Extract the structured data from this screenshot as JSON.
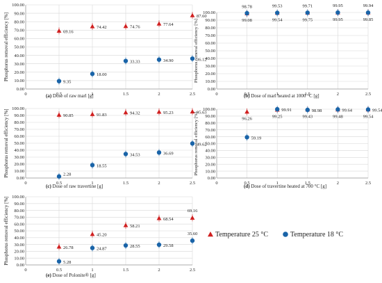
{
  "colors": {
    "t25": "#d02020",
    "t18": "#1a64a8",
    "grid": "#d8d8d8",
    "axis": "#9a9a9a"
  },
  "legend": {
    "t25": "Temperature 25 °C",
    "t18": "Temperature 18 °C"
  },
  "chart_data": [
    {
      "id": "a",
      "type": "scatter",
      "caption_letter": "(a)",
      "caption": "Dose of raw marl [g]",
      "ylabel": "Phosphorus removal efficiency  [%]",
      "xlim": [
        0,
        2.5
      ],
      "ylim": [
        0,
        100
      ],
      "ystep": 10,
      "xticks": [
        "0",
        "0.5",
        "1",
        "1.5",
        "2",
        "2.5"
      ],
      "yticks": [
        "0.00",
        "10.00",
        "20.00",
        "30.00",
        "40.00",
        "50.00",
        "60.00",
        "70.00",
        "80.00",
        "90.00",
        "100.00"
      ],
      "x": [
        0.5,
        1,
        1.5,
        2,
        2.5
      ],
      "series": [
        {
          "name": "Temperature 25 °C",
          "values": [
            69.16,
            74.42,
            74.76,
            77.64,
            87.6
          ],
          "labels": [
            "69.16",
            "74.42",
            "74.76",
            "77.64",
            "87.60"
          ]
        },
        {
          "name": "Temperature 18 °C",
          "values": [
            9.35,
            18.0,
            33.33,
            34.9,
            36.12
          ],
          "labels": [
            "9.35",
            "18.00",
            "33.33",
            "34.90",
            "36.12"
          ]
        }
      ]
    },
    {
      "id": "b",
      "type": "scatter",
      "caption_letter": "(b)",
      "caption": "Dose of marl heated at 1000 °C [g]",
      "ylabel": "Phosphorus removal efficiency  [%]",
      "xlim": [
        0,
        2.5
      ],
      "ylim": [
        0,
        100
      ],
      "ystep": 10,
      "xticks": [
        "0",
        "0.5",
        "1",
        "1.5",
        "2",
        "2.5"
      ],
      "yticks": [
        "0.00",
        "10.00",
        "20.00",
        "30.00",
        "40.00",
        "50.00",
        "60.00",
        "70.00",
        "80.00",
        "90.00",
        "100.00"
      ],
      "x": [
        0.5,
        1,
        1.5,
        2,
        2.5
      ],
      "series": [
        {
          "name": "Temperature 25 °C",
          "values": [
            98.78,
            99.53,
            99.71,
            99.95,
            99.94
          ],
          "labels": [
            "98.78",
            "99.53",
            "99.71",
            "99.95",
            "99.94"
          ]
        },
        {
          "name": "Temperature 18 °C",
          "values": [
            99.08,
            99.54,
            99.75,
            99.95,
            99.85
          ],
          "labels": [
            "99.08",
            "99.54",
            "99.75",
            "99.95",
            "99.85"
          ]
        }
      ]
    },
    {
      "id": "c",
      "type": "scatter",
      "caption_letter": "(c)",
      "caption": "Dose of raw travertine [g]",
      "ylabel": "Phosphorus removal efficiency  [%]",
      "xlim": [
        0,
        2.5
      ],
      "ylim": [
        0,
        100
      ],
      "ystep": 10,
      "xticks": [
        "0",
        "0.5",
        "1",
        "1.5",
        "2",
        "2.5"
      ],
      "yticks": [
        "0.00",
        "10.00",
        "20.00",
        "30.00",
        "40.00",
        "50.00",
        "60.00",
        "70.00",
        "80.00",
        "90.00",
        "100.00"
      ],
      "x": [
        0.5,
        1,
        1.5,
        2,
        2.5
      ],
      "series": [
        {
          "name": "Temperature 25 °C",
          "values": [
            90.85,
            91.83,
            94.32,
            95.23,
            95.63
          ],
          "labels": [
            "90.85",
            "91.83",
            "94.32",
            "95.23",
            "95.63"
          ]
        },
        {
          "name": "Temperature 18 °C",
          "values": [
            2.28,
            18.55,
            34.53,
            36.69,
            49.62
          ],
          "labels": [
            "2.28",
            "18.55",
            "34.53",
            "36.69",
            "49.62"
          ]
        }
      ]
    },
    {
      "id": "d",
      "type": "scatter",
      "caption_letter": "(d)",
      "caption": "Dose of travertine heated at 700 °C [g]",
      "ylabel": "Phosphorus removal efficiency  [%]",
      "xlim": [
        0,
        2.5
      ],
      "ylim": [
        0,
        100
      ],
      "ystep": 10,
      "xticks": [
        "0",
        "0.5",
        "1",
        "1.5",
        "2",
        "2.5"
      ],
      "yticks": [
        "0.00",
        "10.00",
        "20.00",
        "30.00",
        "40.00",
        "50.00",
        "60.00",
        "70.00",
        "80.00",
        "90.00",
        "100.00"
      ],
      "x": [
        0.5,
        1,
        1.5,
        2,
        2.5
      ],
      "series": [
        {
          "name": "Temperature 25 °C",
          "values": [
            96.26,
            99.25,
            99.43,
            99.48,
            99.54
          ],
          "labels": [
            "96.26",
            "99.25",
            "99.43",
            "99.48",
            "99.54"
          ]
        },
        {
          "name": "Temperature 18 °C",
          "values": [
            59.19,
            99.91,
            98.98,
            99.64,
            99.54
          ],
          "labels": [
            "59.19",
            "99.91",
            "98.98",
            "99.64",
            "99.54"
          ]
        }
      ]
    },
    {
      "id": "e",
      "type": "scatter",
      "caption_letter": "(e)",
      "caption": "Dose of Polonite® [g]",
      "ylabel": "Phosphorus removal efficiency  [%]",
      "xlim": [
        0,
        2.5
      ],
      "ylim": [
        0,
        100
      ],
      "ystep": 10,
      "xticks": [
        "0",
        "0.5",
        "1",
        "1.5",
        "2",
        "2.5"
      ],
      "yticks": [
        "0.00",
        "10.00",
        "20.00",
        "30.00",
        "40.00",
        "50.00",
        "60.00",
        "70.00",
        "80.00",
        "90.00",
        "100.00"
      ],
      "x": [
        0.5,
        1,
        1.5,
        2,
        2.5
      ],
      "series": [
        {
          "name": "Temperature 25 °C",
          "values": [
            26.78,
            45.2,
            58.21,
            68.54,
            69.16
          ],
          "labels": [
            "26.78",
            "45.20",
            "58.21",
            "68.54",
            "69.16"
          ]
        },
        {
          "name": "Temperature 18 °C",
          "values": [
            5.28,
            24.87,
            28.55,
            29.58,
            35.6
          ],
          "labels": [
            "5.28",
            "24.87",
            "28.55",
            "29.58",
            "35.60"
          ]
        }
      ]
    }
  ]
}
